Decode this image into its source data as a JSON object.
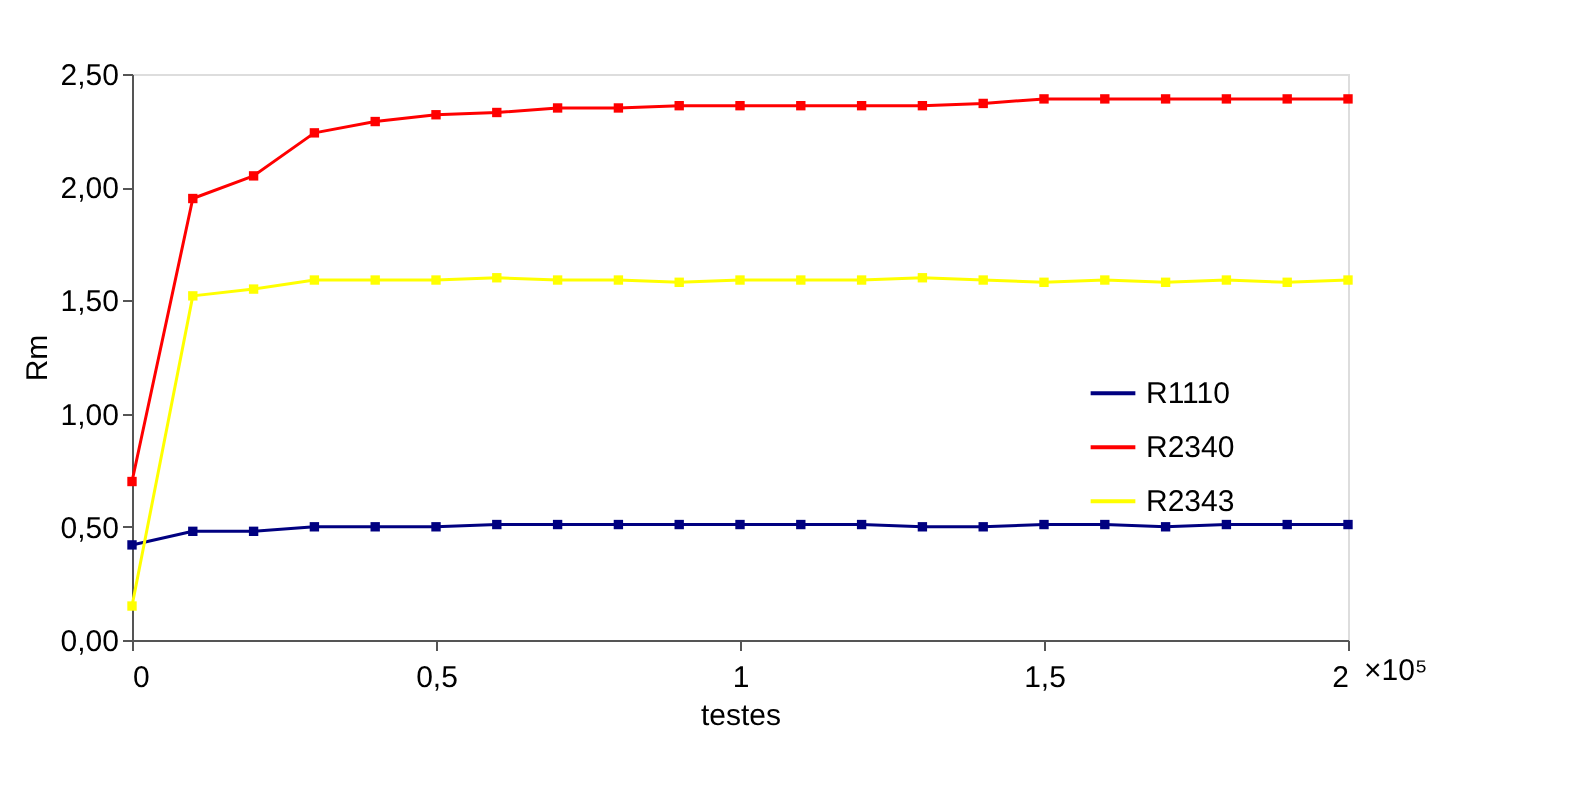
{
  "chart_data": {
    "type": "line",
    "xlabel": "testes",
    "ylabel": "Rm",
    "x": [
      0,
      0.1,
      0.2,
      0.3,
      0.4,
      0.5,
      0.6,
      0.7,
      0.8,
      0.9,
      1.0,
      1.1,
      1.2,
      1.3,
      1.4,
      1.5,
      1.6,
      1.7,
      1.8,
      1.9,
      2.0
    ],
    "series": [
      {
        "name": "R1110",
        "color": "#000080",
        "values": [
          0.42,
          0.48,
          0.48,
          0.5,
          0.5,
          0.5,
          0.51,
          0.51,
          0.51,
          0.51,
          0.51,
          0.51,
          0.51,
          0.5,
          0.5,
          0.51,
          0.51,
          0.5,
          0.51,
          0.51,
          0.51
        ]
      },
      {
        "name": "R2340",
        "color": "#ff0000",
        "values": [
          0.7,
          1.95,
          2.05,
          2.24,
          2.29,
          2.32,
          2.33,
          2.35,
          2.35,
          2.36,
          2.36,
          2.36,
          2.36,
          2.36,
          2.37,
          2.39,
          2.39,
          2.39,
          2.39,
          2.39,
          2.39
        ]
      },
      {
        "name": "R2343",
        "color": "#ffff00",
        "values": [
          0.15,
          1.52,
          1.55,
          1.59,
          1.59,
          1.59,
          1.6,
          1.59,
          1.59,
          1.58,
          1.59,
          1.59,
          1.59,
          1.6,
          1.59,
          1.58,
          1.59,
          1.58,
          1.59,
          1.58,
          1.59
        ]
      }
    ],
    "xlim": [
      0,
      2
    ],
    "xticks": [
      0,
      {
        "value": 0.5,
        "label": "0,5"
      },
      1,
      {
        "value": 1.5,
        "label": "1,5"
      },
      2
    ],
    "ylim": [
      0,
      2.5
    ],
    "yticks": [
      {
        "value": 0,
        "label": "0,00"
      },
      {
        "value": 0.5,
        "label": "0,50"
      },
      {
        "value": 1,
        "label": "1,00"
      },
      {
        "value": 1.5,
        "label": "1,50"
      },
      {
        "value": 2,
        "label": "2,00"
      },
      {
        "value": 2.5,
        "label": "2,50"
      }
    ],
    "annotations": [
      "×10⁵"
    ],
    "legend": "right",
    "marker": "square",
    "line_style": "solid",
    "grid": false
  }
}
